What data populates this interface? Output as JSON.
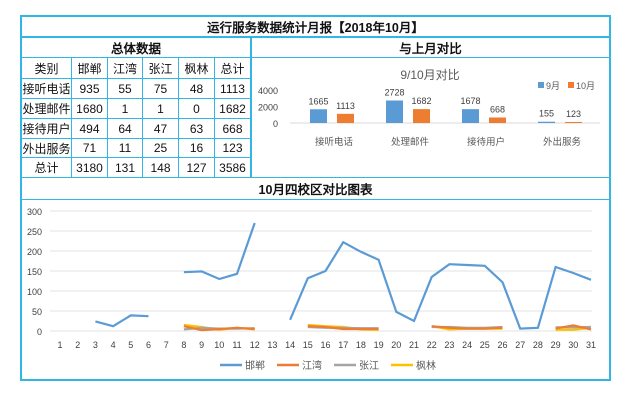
{
  "title": "运行服务数据统计月报【2018年10月】",
  "left_header": "总体数据",
  "right_header": "与上月对比",
  "chart_header": "10月四校区对比图表",
  "table": {
    "columns": [
      "类别",
      "邯郸",
      "江湾",
      "张江",
      "枫林",
      "总计"
    ],
    "rows": [
      [
        "接听电话",
        "935",
        "55",
        "75",
        "48",
        "1113"
      ],
      [
        "处理邮件",
        "1680",
        "1",
        "1",
        "0",
        "1682"
      ],
      [
        "接待用户",
        "494",
        "64",
        "47",
        "63",
        "668"
      ],
      [
        "外出服务",
        "71",
        "11",
        "25",
        "16",
        "123"
      ],
      [
        "总计",
        "3180",
        "131",
        "148",
        "127",
        "3586"
      ]
    ]
  },
  "chart_data": [
    {
      "type": "bar",
      "title": "9/10月对比",
      "categories": [
        "接听电话",
        "处理邮件",
        "接待用户",
        "外出服务"
      ],
      "series": [
        {
          "name": "9月",
          "color": "#5b9bd5",
          "values": [
            1665,
            2728,
            1678,
            155
          ]
        },
        {
          "name": "10月",
          "color": "#ed7d31",
          "values": [
            1113,
            1682,
            668,
            123
          ]
        }
      ],
      "yticks": [
        "0",
        "2000",
        "4000"
      ],
      "ylim": [
        0,
        4000
      ],
      "legend": "top-right"
    },
    {
      "type": "line",
      "x": [
        1,
        2,
        3,
        4,
        5,
        6,
        7,
        8,
        9,
        10,
        11,
        12,
        13,
        14,
        15,
        16,
        17,
        18,
        19,
        20,
        21,
        22,
        23,
        24,
        25,
        26,
        27,
        28,
        29,
        30,
        31
      ],
      "xticks": [
        "1",
        "2",
        "3",
        "4",
        "5",
        "6",
        "7",
        "8",
        "9",
        "10",
        "11",
        "12",
        "13",
        "14",
        "15",
        "16",
        "17",
        "18",
        "19",
        "20",
        "21",
        "22",
        "23",
        "24",
        "25",
        "26",
        "27",
        "28",
        "29",
        "30",
        "31"
      ],
      "yticks": [
        "0",
        "50",
        "100",
        "150",
        "200",
        "250",
        "300"
      ],
      "ylim": [
        0,
        300
      ],
      "legend": "bottom",
      "series": [
        {
          "name": "邯郸",
          "color": "#5b9bd5",
          "values": [
            null,
            null,
            24,
            12,
            39,
            37,
            null,
            147,
            149,
            130,
            143,
            270,
            null,
            28,
            132,
            150,
            222,
            198,
            178,
            48,
            25,
            135,
            167,
            165,
            163,
            122,
            6,
            8,
            160,
            145,
            128
          ]
        },
        {
          "name": "江湾",
          "color": "#ed7d31",
          "values": [
            null,
            null,
            null,
            null,
            null,
            null,
            null,
            12,
            2,
            5,
            8,
            5,
            null,
            null,
            12,
            10,
            5,
            5,
            5,
            null,
            null,
            12,
            8,
            6,
            6,
            8,
            null,
            null,
            6,
            14,
            4
          ]
        },
        {
          "name": "张江",
          "color": "#a5a5a5",
          "values": [
            null,
            null,
            null,
            null,
            null,
            null,
            null,
            4,
            8,
            6,
            6,
            7,
            null,
            null,
            10,
            8,
            8,
            7,
            7,
            null,
            null,
            10,
            10,
            8,
            8,
            10,
            null,
            null,
            9,
            9,
            10
          ]
        },
        {
          "name": "枫林",
          "color": "#ffc000",
          "values": [
            null,
            null,
            null,
            null,
            null,
            null,
            null,
            15,
            10,
            3,
            8,
            4,
            null,
            null,
            15,
            12,
            10,
            4,
            3,
            null,
            null,
            12,
            4,
            6,
            6,
            6,
            null,
            null,
            3,
            3,
            8
          ]
        }
      ]
    }
  ]
}
